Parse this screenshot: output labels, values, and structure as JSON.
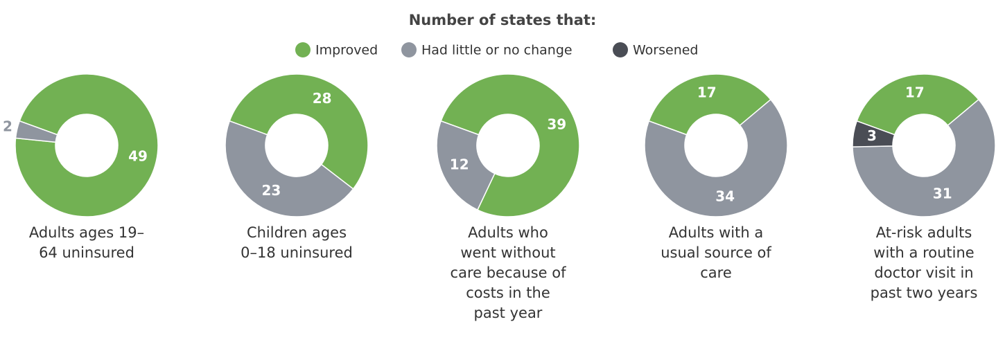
{
  "heading": "Number of states that:",
  "legend": {
    "categories": [
      "Improved",
      "Had little or no change",
      "Worsened"
    ],
    "colors": [
      "#72b153",
      "#8f959f",
      "#4a4d55"
    ]
  },
  "chart_data": [
    {
      "type": "donut",
      "title": "Adults ages 19–64 uninsured",
      "values": [
        49,
        2
      ]
    },
    {
      "type": "donut",
      "title": "Children ages 0–18 uninsured",
      "values": [
        28,
        23
      ]
    },
    {
      "type": "donut",
      "title": "Adults who went without care because of costs in the past year",
      "values": [
        39,
        12
      ]
    },
    {
      "type": "donut",
      "title": "Adults with a usual source of care",
      "values": [
        17,
        34
      ]
    },
    {
      "type": "donut",
      "title": "At-risk adults with a routine doctor visit in past two years",
      "values": [
        17,
        31,
        3
      ]
    }
  ]
}
